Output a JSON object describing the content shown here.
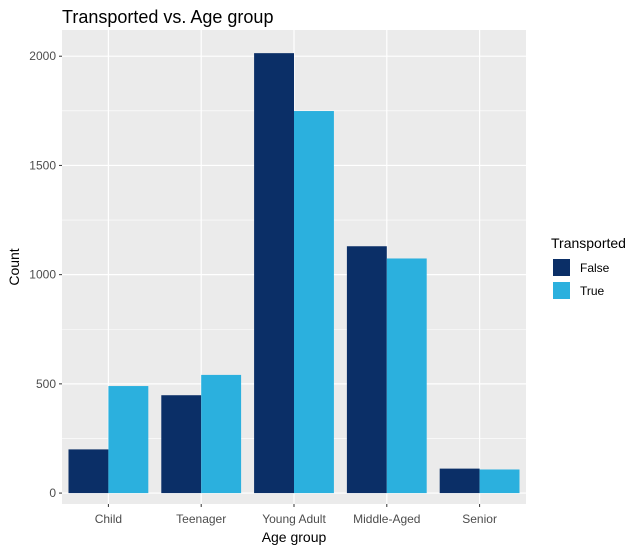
{
  "chart_data": {
    "type": "bar",
    "title": "Transported vs. Age group",
    "xlabel": "Age group",
    "ylabel": "Count",
    "categories": [
      "Child",
      "Teenager",
      "Young Adult",
      "Middle-Aged",
      "Senior"
    ],
    "series": [
      {
        "name": "False",
        "values": [
          200,
          448,
          2014,
          1130,
          112
        ]
      },
      {
        "name": "True",
        "values": [
          490,
          541,
          1749,
          1074,
          108
        ]
      }
    ],
    "ylim": [
      -50,
      2120
    ],
    "yticks": [
      0,
      500,
      1000,
      1500,
      2000
    ],
    "legend": {
      "title": "Transported",
      "position": "right"
    },
    "grid": true,
    "colors": {
      "panel": "#ebebeb",
      "grid": "#ffffff",
      "False": "#0b2f67",
      "True": "#2bb0de"
    }
  }
}
